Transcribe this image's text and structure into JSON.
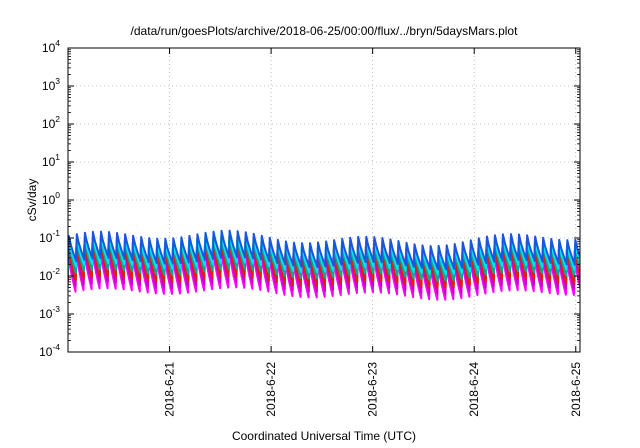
{
  "chart_data": {
    "type": "line",
    "title": "/data/run/goesPlots/archive/2018-06-25/00:00/flux/../bryn/5daysMars.plot",
    "xlabel": "Coordinated Universal Time (UTC)",
    "ylabel": "cSv/day",
    "y_scale": "log",
    "ylim": [
      0.0001,
      10000
    ],
    "xlim": [
      "2018-06-20 00:00",
      "2018-06-25 01:00"
    ],
    "grid": true,
    "y_tick_labels": [
      {
        "base": "10",
        "exp": "-4",
        "value": 0.0001
      },
      {
        "base": "10",
        "exp": "-3",
        "value": 0.001
      },
      {
        "base": "10",
        "exp": "-2",
        "value": 0.01
      },
      {
        "base": "10",
        "exp": "-1",
        "value": 0.1
      },
      {
        "base": "10",
        "exp": "0",
        "value": 1
      },
      {
        "base": "10",
        "exp": "1",
        "value": 10
      },
      {
        "base": "10",
        "exp": "2",
        "value": 100
      },
      {
        "base": "10",
        "exp": "3",
        "value": 1000
      },
      {
        "base": "10",
        "exp": "4",
        "value": 10000
      }
    ],
    "x_tick_labels": [
      "2018-6-21",
      "2018-6-22",
      "2018-6-23",
      "2018-6-24",
      "2018-6-25"
    ],
    "x_tick_values": [
      "2018-06-21 00:00",
      "2018-06-22 00:00",
      "2018-06-23 00:00",
      "2018-06-24 00:00",
      "2018-06-25 00:00"
    ],
    "sawtooth_period_hours": 1.9,
    "series": [
      {
        "color": "#ff00ff",
        "peak": 0.035,
        "trough": 0.0035,
        "phase": 0.0
      },
      {
        "color": "#cc00cc",
        "peak": 0.045,
        "trough": 0.005,
        "phase": 0.02
      },
      {
        "color": "#dd2200",
        "peak": 0.055,
        "trough": 0.007,
        "phase": 0.04
      },
      {
        "color": "#00aa99",
        "peak": 0.07,
        "trough": 0.011,
        "phase": 0.06
      },
      {
        "color": "#00e5ee",
        "peak": 0.08,
        "trough": 0.016,
        "phase": 0.08
      },
      {
        "color": "#1a55dd",
        "peak": 0.1,
        "trough": 0.022,
        "phase": 0.1
      }
    ]
  }
}
